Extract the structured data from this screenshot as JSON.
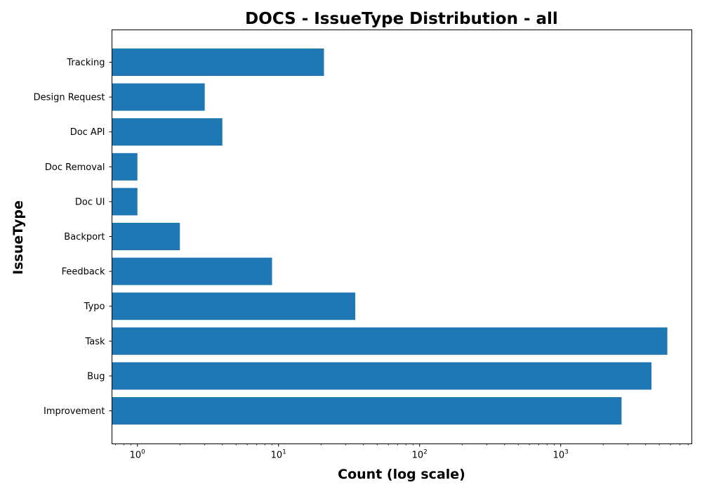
{
  "chart_data": {
    "type": "bar",
    "orientation": "horizontal",
    "title": "DOCS - IssueType Distribution - all",
    "xlabel": "Count (log scale)",
    "ylabel": "IssueType",
    "xscale": "log",
    "xlim": [
      0.66,
      8500
    ],
    "categories": [
      "Improvement",
      "Bug",
      "Task",
      "Typo",
      "Feedback",
      "Backport",
      "Doc UI",
      "Doc Removal",
      "Doc API",
      "Design Request",
      "Tracking"
    ],
    "values": [
      2700,
      4400,
      5700,
      35,
      9,
      2,
      1,
      1,
      4,
      3,
      21
    ],
    "bar_color": "#1f77b4",
    "x_major_ticks": [
      {
        "value": 1,
        "base": "10",
        "exp": "0"
      },
      {
        "value": 10,
        "base": "10",
        "exp": "1"
      },
      {
        "value": 100,
        "base": "10",
        "exp": "2"
      },
      {
        "value": 1000,
        "base": "10",
        "exp": "3"
      }
    ],
    "grid": false,
    "legend": "none"
  }
}
